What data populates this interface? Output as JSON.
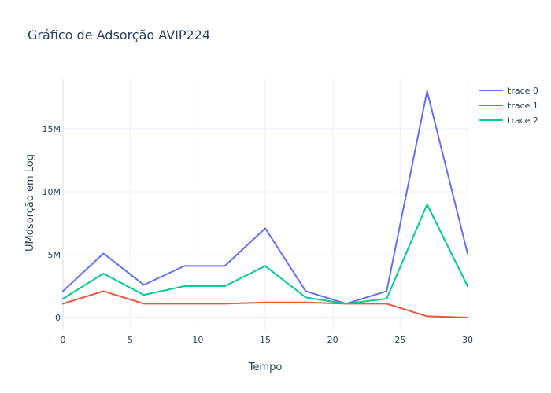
{
  "chart_data": {
    "type": "line",
    "title": "Gráfico de Adsorção AVIP224",
    "xlabel": "Tempo",
    "ylabel": "UMdsorção em Log",
    "xlim": [
      0,
      30
    ],
    "ylim": [
      -1000000,
      19000000
    ],
    "x_ticks": [
      0,
      5,
      10,
      15,
      20,
      25,
      30
    ],
    "x_tick_labels": [
      "0",
      "5",
      "10",
      "15",
      "20",
      "25",
      "30"
    ],
    "y_ticks": [
      0,
      5000000,
      10000000,
      15000000
    ],
    "y_tick_labels": [
      "0",
      "5M",
      "10M",
      "15M"
    ],
    "grid": true,
    "legend_position": "top-right",
    "x": [
      0,
      3,
      6,
      9,
      12,
      15,
      18,
      21,
      24,
      27,
      30
    ],
    "series": [
      {
        "name": "trace 0",
        "color": "#636efa",
        "values": [
          2100000,
          5100000,
          2600000,
          4100000,
          4100000,
          7100000,
          2100000,
          1100000,
          2100000,
          18000000,
          5100000
        ]
      },
      {
        "name": "trace 1",
        "color": "#EF553B",
        "values": [
          1100000,
          2100000,
          1100000,
          1100000,
          1100000,
          1200000,
          1200000,
          1100000,
          1100000,
          100000,
          0
        ]
      },
      {
        "name": "trace 2",
        "color": "#00cc96",
        "values": [
          1500000,
          3500000,
          1800000,
          2500000,
          2500000,
          4100000,
          1600000,
          1100000,
          1500000,
          9000000,
          2500000
        ]
      }
    ]
  }
}
